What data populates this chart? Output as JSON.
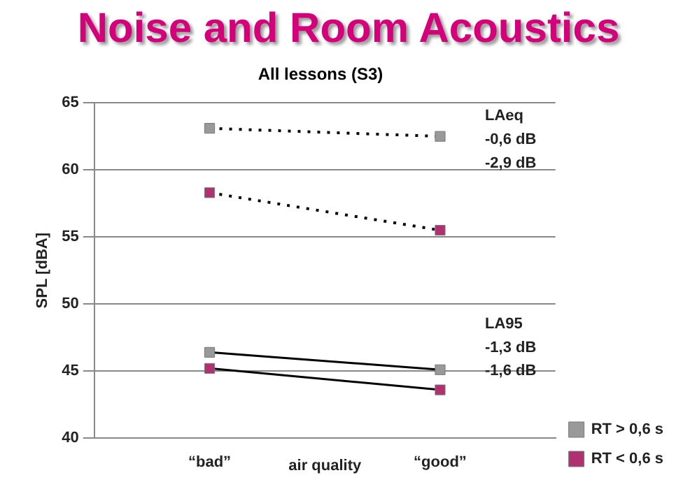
{
  "chart_data": {
    "type": "line",
    "title": "Noise and Room Acoustics",
    "subtitle": "All lessons (S3)",
    "xlabel": "air quality",
    "ylabel": "SPL [dBA]",
    "categories": [
      "“bad”",
      "“good”"
    ],
    "series": [
      {
        "name": "RT > 0,6 s",
        "color": "#999999",
        "values": [
          63.1,
          62.5
        ],
        "line_style": "dotted"
      },
      {
        "name": "RT < 0,6 s",
        "color": "#b03070",
        "values": [
          58.3,
          55.5
        ],
        "line_style": "dotted"
      },
      {
        "color": "#999999",
        "values": [
          46.4,
          45.1
        ],
        "line_style": "solid"
      },
      {
        "color": "#b03070",
        "values": [
          45.2,
          43.6
        ],
        "line_style": "solid"
      }
    ],
    "ylim": [
      40,
      65
    ],
    "yticks": [
      40,
      45,
      50,
      55,
      60,
      65
    ],
    "grid": "y",
    "legend": "bottom right",
    "marker": "square",
    "annotations": [
      "LAeq",
      "-0,6 dB",
      "-2,9 dB",
      "LA95",
      "-1,3 dB",
      "-1,6 dB"
    ]
  }
}
